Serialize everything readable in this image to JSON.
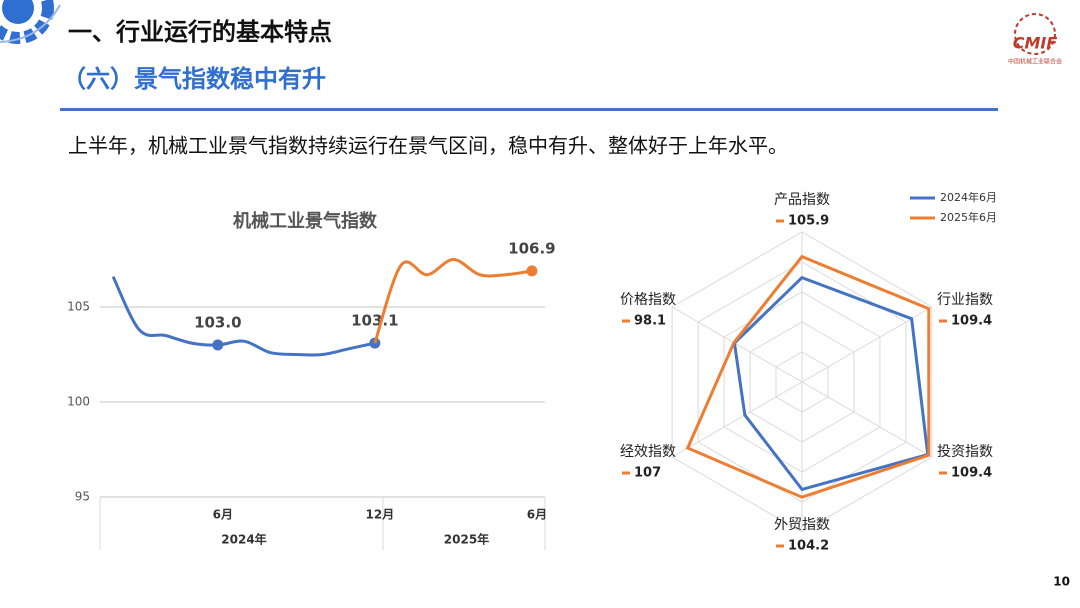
{
  "header": {
    "title": "一、行业运行的基本特点",
    "subtitle": "（六）景气指数稳中有升",
    "logo_mark": "CMIF",
    "logo_text": "中国机械工业联合会"
  },
  "text": "上半年，机械工业景气指数持续运行在景气区间，稳中有升、整体好于上年水平。",
  "page_number": "10",
  "chart_data": [
    {
      "type": "line",
      "title": "机械工业景气指数",
      "categories": [
        null,
        null,
        null,
        null,
        "6月",
        null,
        null,
        null,
        null,
        null,
        "12月",
        null,
        null,
        null,
        null,
        null,
        "6月"
      ],
      "group_labels": [
        "2024年",
        "2025年"
      ],
      "series": [
        {
          "color": "#4472c4",
          "values": [
            106.6,
            103.8,
            103.5,
            103.1,
            103.0,
            103.2,
            102.6,
            102.5,
            102.5,
            102.8,
            103.1,
            null,
            null,
            null,
            null,
            null,
            null
          ],
          "value_labels": [
            null,
            null,
            null,
            null,
            "103.0",
            null,
            null,
            null,
            null,
            null,
            "103.1",
            null,
            null,
            null,
            null,
            null,
            null
          ]
        },
        {
          "color": "#ed7d31",
          "values": [
            null,
            null,
            null,
            null,
            null,
            null,
            null,
            null,
            null,
            null,
            103.1,
            107.2,
            106.7,
            107.5,
            106.7,
            106.7,
            106.9
          ],
          "value_labels": [
            null,
            null,
            null,
            null,
            null,
            null,
            null,
            null,
            null,
            null,
            null,
            null,
            null,
            null,
            null,
            null,
            "106.9"
          ]
        }
      ],
      "ylim": [
        95,
        108
      ],
      "yticks": [
        95,
        100,
        105
      ],
      "grid": true
    },
    {
      "type": "radar",
      "categories": [
        "产品指数",
        "行业指数",
        "投资指数",
        "外贸指数",
        "经效指数",
        "价格指数"
      ],
      "series": [
        {
          "name": "2024年6月",
          "color": "#4472c4",
          "values": [
            102.4,
            106.1,
            109.2,
            102.9,
            96,
            98.0
          ]
        },
        {
          "name": "2025年6月",
          "color": "#ed7d31",
          "values": [
            105.9,
            109.4,
            109.4,
            104.2,
            107,
            98.1
          ],
          "value_labels": [
            "105.9",
            "109.4",
            "109.4",
            "104.2",
            "107",
            "98.1"
          ]
        }
      ],
      "rlim": [
        85,
        110
      ],
      "rticks": [
        90,
        95,
        100,
        105,
        110
      ],
      "legend": "top-right"
    }
  ]
}
